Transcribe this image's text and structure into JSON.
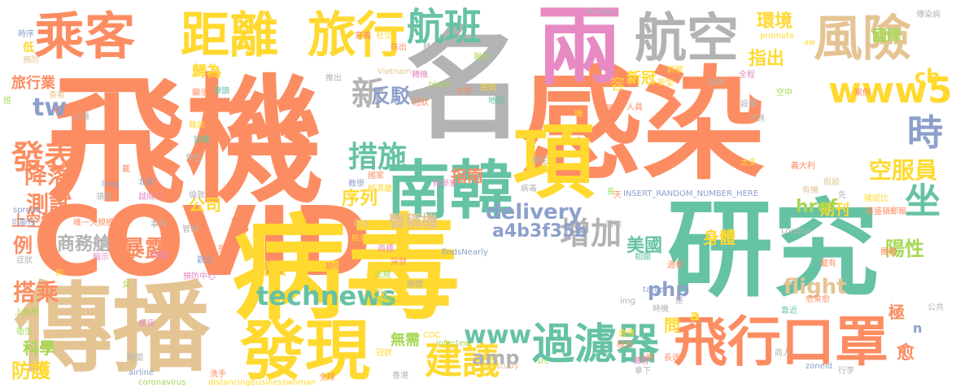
{
  "palette": {
    "orange": "#fc8d62",
    "green": "#66c2a5",
    "blue": "#8da0cb",
    "pink": "#e78ac3",
    "lime": "#a6d854",
    "yellow": "#ffd92f",
    "tan": "#e5c494",
    "gray": "#b3b3b3"
  },
  "words": {
    "feiji": "飛機",
    "ganran": "感染",
    "covid": "COVID",
    "bingdu": "病毒",
    "yanjiu": "研究",
    "ming": "名",
    "liang": "兩",
    "chuanbo": "傳播",
    "xiang": "項",
    "fanxian": "發現",
    "nanhan": "南韓",
    "chengke": "乘客",
    "juli": "距離",
    "luxing": "旅行",
    "hangban": "航班",
    "hangkong": "航空",
    "fengxian": "風險",
    "feixingkouzhao": "飛行口罩",
    "guolvqi": "過濾器",
    "jianyi": "建議",
    "shi": "時",
    "zuo": "坐",
    "www5": "www5",
    "technews": "technews",
    "cuoshi": "措施",
    "xin": "新",
    "fabiao": "發表",
    "zengjia": "增加",
    "delivery": "delivery",
    "www": "www",
    "amp": "amp",
    "flight": "flight",
    "php": "php",
    "shangwucang": "商務艙",
    "baolu": "暴露",
    "dacheng": "搭乘",
    "ceshi": "測試",
    "jiangluo": "降落",
    "fangju": "反駁",
    "zhinan": "指南",
    "huanjing": "環境",
    "guoji": "國際",
    "zhichu": "指出",
    "xinguan": "新冠",
    "kongfuyuan": "空服員",
    "qikan": "期刊",
    "tw": "tw",
    "cb": "cb",
    "a4b": "a4b3f35b",
    "href": "href",
    "meiguo": "美國",
    "yangxing": "陽性",
    "shenti": "身體",
    "xulie": "序列",
    "gongsi": "公司",
    "shengchengji": "聲稱機",
    "sui": "歲",
    "li": "例",
    "shuofa": "說法",
    "kexue": "科學",
    "fanghu": "防護",
    "wuxu": "無需",
    "ji": "極",
    "yu": "愈",
    "wen": "問",
    "n": "n",
    "a": "a",
    "shangkongqi": "上空氣",
    "luxingye": "旅行業",
    "guiwei": "歸為",
    "shixu": "時序",
    "di": "低",
    "yufang": "預防",
    "ban": "班",
    "chakan": "查看",
    "rukou": "入境",
    "xianshi": "顯示",
    "jiechu": "接觸",
    "zazhi": "雜誌",
    "jiaose": "角色",
    "zai": "載",
    "beibu": "北部",
    "long": "long",
    "lingqu": "領取",
    "yuenanhe": "越南河",
    "chuanranbing": "傳染病",
    "lundun": "倫敦",
    "guojia": "國家",
    "jingjicang": "經濟艙",
    "spread": "spread",
    "kenengxing": "可能性",
    "weiyidaguimo": "唯一大規模",
    "shijian": "事件",
    "guanzhi": "管制",
    "dihai": "抵達",
    "yingguo": "英國",
    "anshi": "暗示",
    "zhengzhuang": "症狀",
    "qian": "前",
    "yufangzhongxin": "預防中心",
    "nv": "女",
    "shangcesuo": "上廁所",
    "weisheng": "衛生",
    "jibing": "疾病",
    "shijian2": "時間",
    "airline": "airline",
    "coronavirus": "coronavirus",
    "xishou": "洗手",
    "distancing": "distancingBusinesswoman",
    "quanqiu": "全球",
    "xianggang": "香港",
    "cdc": "CDC",
    "infected": "infected",
    "study": "study",
    "src": "src",
    "zoneid": "zoneid",
    "xingli": "行李",
    "shaoshi": "小時",
    "changtu": "長途",
    "jiance": "檢測",
    "yichan": "遺傳",
    "jihui": "機會",
    "naxia": "拿下",
    "insert": "INSERT_RANDOM_NUMBER_HERE",
    "london": "London",
    "target": "target",
    "img": "img",
    "findsnearly": "findsNearly",
    "ck": "ck",
    "xiangguan": "相關",
    "guocheng": "過程",
    "zaiyou": "載有",
    "tuanti": "團體",
    "kaojin": "靠近",
    "yulaiyu": "愈來愈",
    "shishou": "時機",
    "zuo2": "座",
    "gonggong": "公共",
    "yiyi": "意義",
    "shejiao": "社交",
    "yidali": "義大利",
    "taiduo": "太多",
    "jiashe": "假設",
    "youji": "有機",
    "querenbi": "確認比",
    "huashengdun": "華盛頓郵報",
    "xianmei": "先",
    "chang": "長",
    "tian": "天",
    "luodi": "落地",
    "bingqi": "病毒",
    "nidingqi": "擬定",
    "kexuejia": "科學家",
    "vietnam": "Vietnam",
    "zhuanfa": "轉機",
    "blank": "_blank",
    "nvxing": "女性",
    "guanbing": "冠狀",
    "gandao": "感到",
    "didian": "地點",
    "yiyuan": "移出",
    "baogao": "報告",
    "tuichu": "推出",
    "yuantou": "源頭",
    "fuchu": "扶出",
    "jiaoxue": "教學",
    "shangbiao": "商標",
    "keyi": "可疑",
    "jianzha": "檢查",
    "fagui": "法規",
    "tufa": "突發",
    "qijian": "期間",
    "yiqing": "疫情",
    "guang": "觀光",
    "leisi": "類似",
    "xiaobing": "嚴重",
    "xinxing": "新興",
    "xinxing2": "新型",
    "qunju": "群聚",
    "quancheng": "全程",
    "kongzhong": "空中",
    "anli": "案例",
    "sheshi": "設備",
    "rongyi": "容",
    "studies": "studies",
    "promote": "promote",
    "aw": "aw",
    "chuanranbing2": "傳染病",
    "dubu": "獨有",
    "renyuan": "人員",
    "jiqi": "機",
    "bushi": "不適",
    "shangren": "商人",
    "nasi": "女士",
    "cheng": "乘",
    "xi": "稱",
    "ji2": "呈",
    "jiyouda": "機"
  }
}
